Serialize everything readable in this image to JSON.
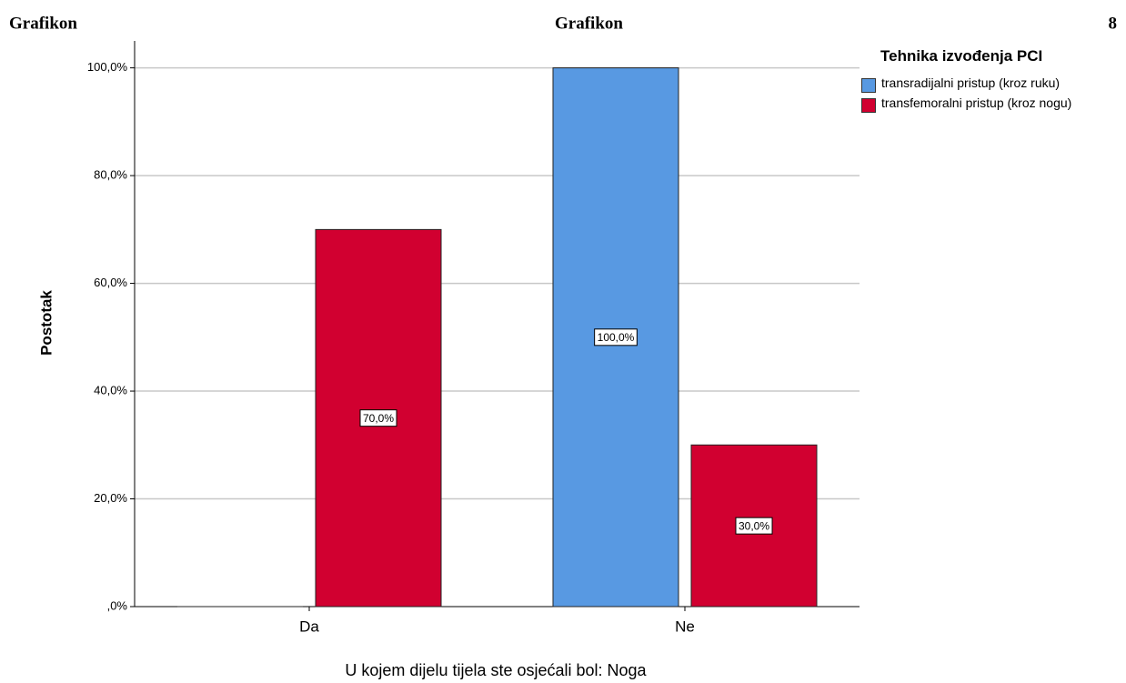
{
  "header_texts": [
    "Grafikon",
    "Grafikon",
    "8"
  ],
  "chart_data": {
    "type": "bar",
    "y_label": "Postotak",
    "x_label": "U kojem dijelu tijela ste osjećali bol: Noga",
    "legend_title": "Tehnika izvođenja PCI",
    "legend_position": "right",
    "categories": [
      "Da",
      "Ne"
    ],
    "series": [
      {
        "name": "transradijalni pristup (kroz ruku)",
        "color": "#5899e2",
        "values": [
          0,
          100
        ],
        "value_labels": [
          null,
          "100,0%"
        ]
      },
      {
        "name": "transfemoralni pristup (kroz nogu)",
        "color": "#d10030",
        "values": [
          70,
          30
        ],
        "value_labels": [
          "70,0%",
          "30,0%"
        ]
      }
    ],
    "ylim": [
      0,
      105
    ],
    "yticks": [
      {
        "value": 0,
        "label": ",0%"
      },
      {
        "value": 20,
        "label": "20,0%"
      },
      {
        "value": 40,
        "label": "40,0%"
      },
      {
        "value": 60,
        "label": "60,0%"
      },
      {
        "value": 80,
        "label": "80,0%"
      },
      {
        "value": 100,
        "label": "100,0%"
      }
    ],
    "grid": true
  }
}
